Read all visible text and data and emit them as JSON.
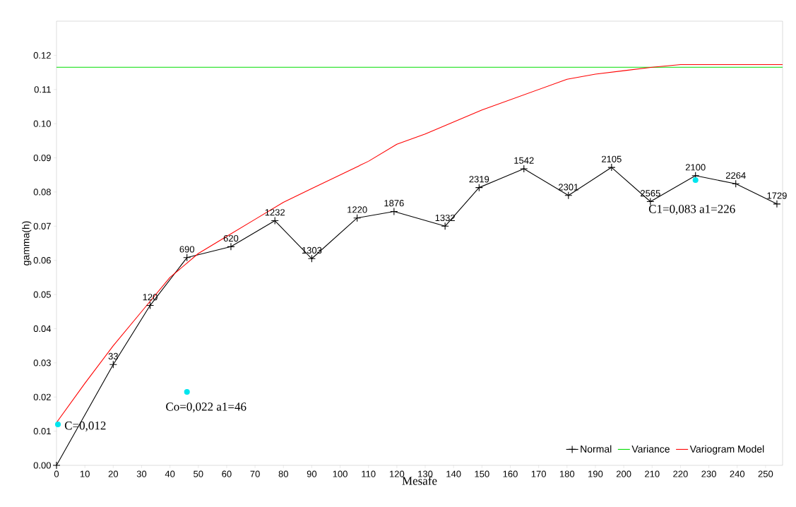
{
  "chart_data": {
    "type": "line",
    "xlabel": "Mesafe",
    "ylabel": "gamma(h)",
    "xlim": [
      0,
      256
    ],
    "ylim": [
      0,
      0.13
    ],
    "xticks": [
      0,
      10,
      20,
      30,
      40,
      50,
      60,
      70,
      80,
      90,
      100,
      110,
      120,
      130,
      140,
      150,
      160,
      170,
      180,
      190,
      200,
      210,
      220,
      230,
      240,
      250
    ],
    "yticks": [
      {
        "value": 0,
        "label": "0.00"
      },
      {
        "value": 0.01,
        "label": "0.01"
      },
      {
        "value": 0.02,
        "label": "0.02"
      },
      {
        "value": 0.03,
        "label": "0.03"
      },
      {
        "value": 0.04,
        "label": "0.04"
      },
      {
        "value": 0.05,
        "label": "0.05"
      },
      {
        "value": 0.06,
        "label": "0.06"
      },
      {
        "value": 0.07,
        "label": "0.07"
      },
      {
        "value": 0.08,
        "label": "0.08"
      },
      {
        "value": 0.09,
        "label": "0.09"
      },
      {
        "value": 0.1,
        "label": "0.10"
      },
      {
        "value": 0.11,
        "label": "0.11"
      },
      {
        "value": 0.12,
        "label": "0.12"
      }
    ],
    "grid": false,
    "legend": "bottom right",
    "series": [
      {
        "name": "Normal",
        "color": "#000000",
        "marker": "cross",
        "x": [
          0,
          20,
          33,
          46,
          61.5,
          77,
          90,
          106,
          119,
          137,
          149,
          164.8,
          180.5,
          195.7,
          209.4,
          225.3,
          239.5,
          254
        ],
        "values": [
          0,
          0.0295,
          0.0468,
          0.0608,
          0.064,
          0.0716,
          0.0605,
          0.0724,
          0.0743,
          0.07,
          0.0813,
          0.0868,
          0.079,
          0.0872,
          0.0772,
          0.0848,
          0.0824,
          0.0765
        ]
      },
      {
        "name": "Variance",
        "color": "#00dd00",
        "marker": "none",
        "x": [
          0,
          256
        ],
        "values": [
          0.1165,
          0.1165
        ]
      },
      {
        "name": "Variogram Model",
        "color": "#ff0000",
        "marker": "none",
        "x": [
          0,
          10,
          20,
          30,
          40,
          50,
          60,
          70,
          80,
          90,
          100,
          110,
          120,
          130,
          140,
          150,
          160,
          170,
          180,
          190,
          200,
          210,
          220,
          256
        ],
        "values": [
          0.0125,
          0.024,
          0.035,
          0.045,
          0.055,
          0.062,
          0.067,
          0.072,
          0.077,
          0.081,
          0.085,
          0.089,
          0.094,
          0.097,
          0.1005,
          0.104,
          0.107,
          0.11,
          0.113,
          0.1145,
          0.1155,
          0.1165,
          0.1173,
          0.1173
        ]
      },
      {
        "type": "scatter",
        "color": "#00e5ee",
        "marker": "circle",
        "x": [
          0.5,
          46,
          225.3
        ],
        "values": [
          0.012,
          0.0215,
          0.0835
        ]
      }
    ],
    "annotations": [
      {
        "text": "C=0,012",
        "x": 0.5,
        "y": 0.012
      },
      {
        "text": "Co=0,022 a1=46",
        "x": 46,
        "y": 0.0215
      },
      {
        "text": "C1=0,083 a1=226",
        "x": 225.3,
        "y": 0.0835
      },
      {
        "text": "33",
        "x": 20,
        "y": 0.0295
      },
      {
        "text": "120",
        "x": 33,
        "y": 0.0468
      },
      {
        "text": "690",
        "x": 46,
        "y": 0.0608
      },
      {
        "text": "620",
        "x": 61.5,
        "y": 0.064
      },
      {
        "text": "1232",
        "x": 77,
        "y": 0.0716
      },
      {
        "text": "1303",
        "x": 90,
        "y": 0.0605
      },
      {
        "text": "1220",
        "x": 106,
        "y": 0.0724
      },
      {
        "text": "1876",
        "x": 119,
        "y": 0.0743
      },
      {
        "text": "1332",
        "x": 137,
        "y": 0.07
      },
      {
        "text": "2319",
        "x": 149,
        "y": 0.0813
      },
      {
        "text": "1542",
        "x": 164.8,
        "y": 0.0868
      },
      {
        "text": "2301",
        "x": 180.5,
        "y": 0.079
      },
      {
        "text": "2105",
        "x": 195.7,
        "y": 0.0872
      },
      {
        "text": "2565",
        "x": 209.4,
        "y": 0.0772
      },
      {
        "text": "2100",
        "x": 225.3,
        "y": 0.0848
      },
      {
        "text": "2264",
        "x": 239.5,
        "y": 0.0824
      },
      {
        "text": "1729",
        "x": 254,
        "y": 0.0765
      }
    ]
  }
}
